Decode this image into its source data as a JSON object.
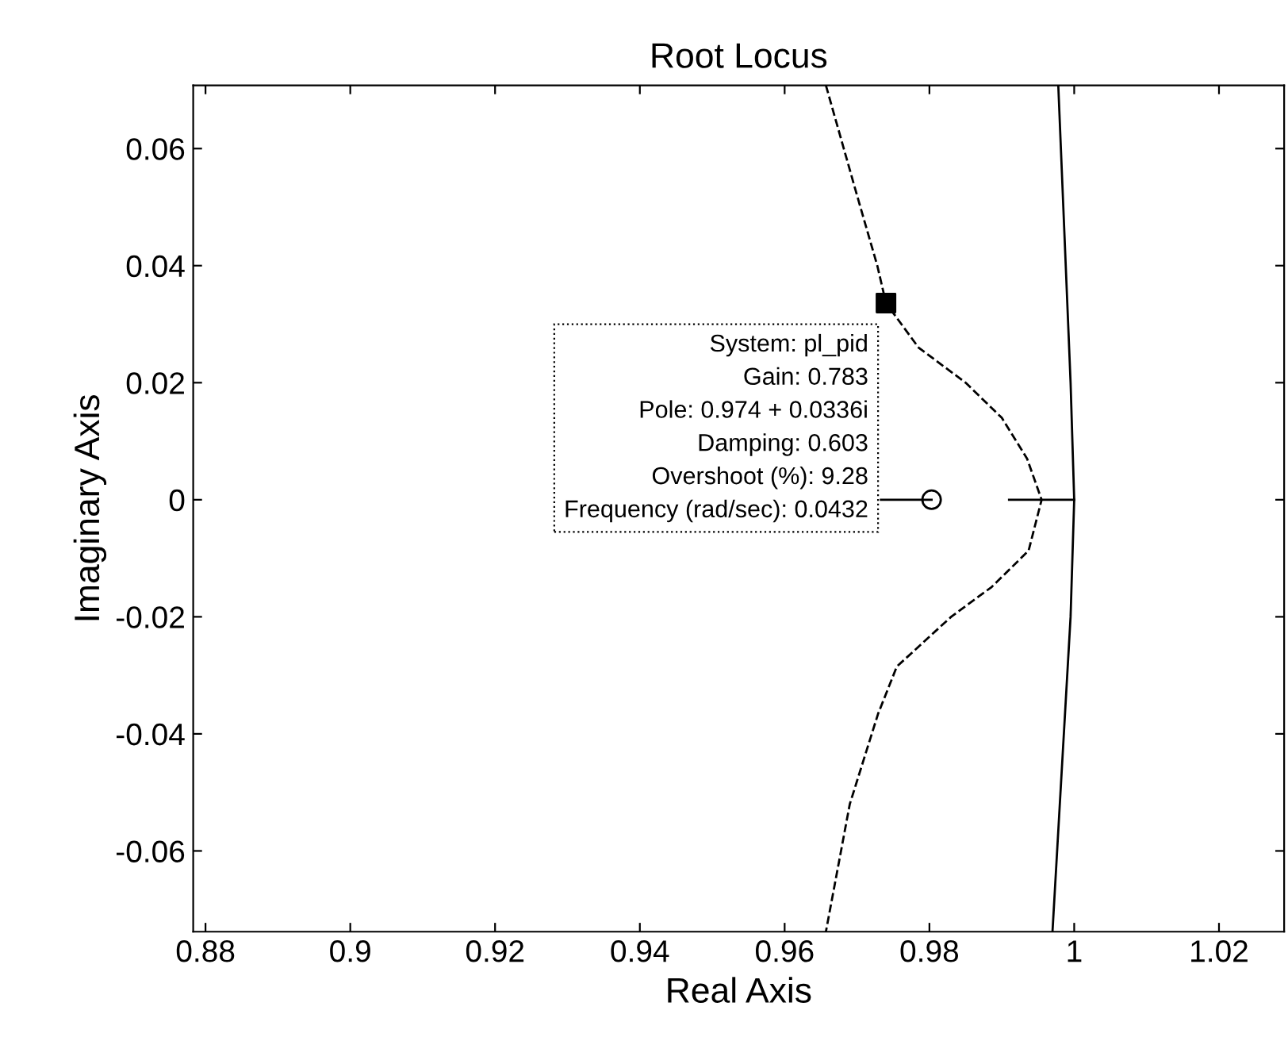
{
  "chart_data": {
    "type": "line",
    "title": "Root Locus",
    "xlabel": "Real Axis",
    "ylabel": "Imaginary Axis",
    "xlim": [
      0.8783,
      1.029
    ],
    "ylim": [
      -0.0738,
      0.0708
    ],
    "xticks": [
      0.88,
      0.9,
      0.92,
      0.94,
      0.96,
      0.98,
      1,
      1.02
    ],
    "yticks": [
      {
        "value": -0.06,
        "label": "-0.06"
      },
      {
        "value": -0.04,
        "label": "-0.04"
      },
      {
        "value": -0.02,
        "label": "-0.02"
      },
      0,
      0.02,
      0.04,
      0.06
    ],
    "grid": false,
    "legend": false,
    "series": [
      {
        "color": "#000000",
        "line_style": "dashed",
        "x": [
          0.9657,
          0.97,
          0.9728,
          0.974,
          0.9785,
          0.985,
          0.99,
          0.9935,
          0.9955,
          0.9937,
          0.9886,
          0.983,
          0.9755,
          0.9729,
          0.969,
          0.9657
        ],
        "values": [
          0.0708,
          0.052,
          0.04,
          0.0336,
          0.026,
          0.02,
          0.014,
          0.007,
          0.0,
          -0.0087,
          -0.0149,
          -0.02,
          -0.0285,
          -0.0366,
          -0.052,
          -0.0738
        ]
      },
      {
        "color": "#000000",
        "line_style": "solid",
        "x": [
          0.9978,
          0.9995,
          1.0,
          0.9995,
          0.997
        ],
        "values": [
          0.0708,
          0.02,
          0.0,
          -0.02,
          -0.0738
        ]
      },
      {
        "color": "#000000",
        "line_style": "solid",
        "x": [
          0.991,
          1.0
        ],
        "values": [
          0,
          0
        ]
      },
      {
        "color": "#000000",
        "line_style": "solid",
        "x": [
          0.9733,
          0.9803
        ],
        "values": [
          0,
          0
        ]
      },
      {
        "type": "scatter",
        "color": "#000000",
        "marker": "circle",
        "x": [
          0.9803
        ],
        "values": [
          0
        ]
      },
      {
        "type": "scatter",
        "color": "#000000",
        "marker": "square",
        "x": [
          0.974
        ],
        "values": [
          0.0336
        ]
      }
    ],
    "annotations": [
      {
        "text": "System: pl_pid\nGain: 0.783\nPole: 0.974 + 0.0336i\nDamping: 0.603\nOvershoot (%): 9.28\nFrequency (rad/sec): 0.0432",
        "x": 0.974,
        "y": 0.0336
      }
    ]
  }
}
